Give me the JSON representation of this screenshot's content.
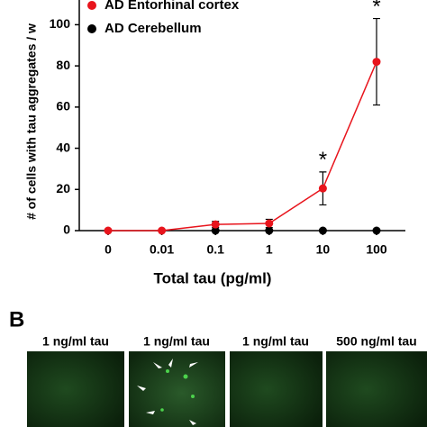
{
  "chart_data": {
    "type": "line",
    "categories": [
      "0",
      "0.01",
      "0.1",
      "1",
      "10",
      "100"
    ],
    "series": [
      {
        "name": "AD Entorhinal cortex",
        "color": "#e8141c",
        "values": [
          0,
          0,
          3,
          3.5,
          20.5,
          82
        ],
        "errors": [
          0,
          0,
          1.5,
          2,
          8,
          21
        ]
      },
      {
        "name": "AD Cerebellum",
        "color": "#000000",
        "values": [
          0,
          0,
          0,
          0,
          0,
          0
        ]
      }
    ],
    "ylim": [
      0,
      112
    ],
    "yticks": [
      0,
      20,
      40,
      60,
      80,
      100
    ],
    "ylabel": "# of cells with tau aggregates / w",
    "xlabel": "Total tau (pg/ml)",
    "annotations": [
      {
        "text": "*",
        "x": "10"
      },
      {
        "text": "*",
        "x": "100"
      }
    ]
  },
  "panel_b": {
    "label": "B",
    "images": [
      "1 ng/ml tau",
      "1 ng/ml tau",
      "1 ng/ml tau",
      "500 ng/ml tau"
    ]
  }
}
